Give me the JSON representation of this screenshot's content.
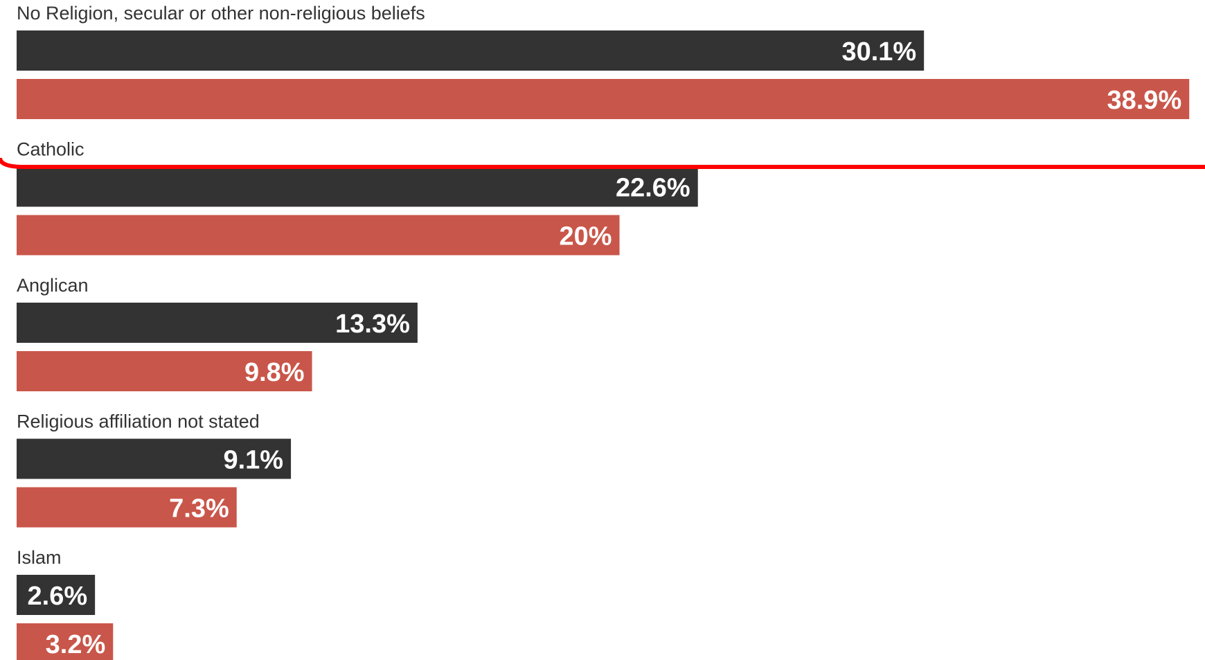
{
  "chart_data": {
    "type": "bar",
    "orientation": "horizontal",
    "categories": [
      "No Religion, secular or other non-religious beliefs",
      "Catholic",
      "Anglican",
      "Religious affiliation not stated",
      "Islam"
    ],
    "series": [
      {
        "color": "#333333",
        "values": [
          30.1,
          22.6,
          13.3,
          9.1,
          2.6
        ]
      },
      {
        "color": "#c9564a",
        "values": [
          38.9,
          20,
          9.8,
          7.3,
          3.2
        ]
      }
    ],
    "value_labels": [
      [
        "30.1%",
        "22.6%",
        "13.3%",
        "9.1%",
        "2.6%"
      ],
      [
        "38.9%",
        "20%",
        "9.8%",
        "7.3%",
        "3.2%"
      ]
    ],
    "xlim": [
      0,
      39.4
    ],
    "grid": false,
    "legend": "none",
    "title": "",
    "xlabel": "",
    "ylabel": "",
    "annotation": {
      "type": "red outline",
      "color": "#ff0000"
    }
  }
}
